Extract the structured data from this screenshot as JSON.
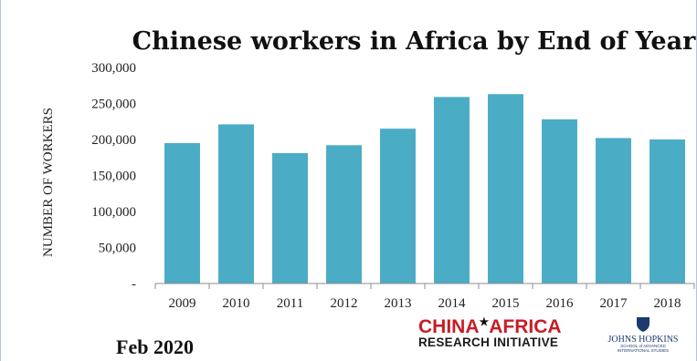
{
  "chart_data": {
    "type": "bar",
    "title": "Chinese workers in Africa by End of Year",
    "xlabel": "",
    "ylabel": "NUMBER OF WORKERS",
    "categories": [
      "2009",
      "2010",
      "2011",
      "2012",
      "2013",
      "2014",
      "2015",
      "2016",
      "2017",
      "2018"
    ],
    "values": [
      195000,
      221000,
      181000,
      192000,
      215000,
      259000,
      263000,
      228000,
      202000,
      200000
    ],
    "ylim": [
      0,
      300000
    ],
    "yticks": [
      0,
      50000,
      100000,
      150000,
      200000,
      250000,
      300000
    ],
    "ytick_labels": [
      "-",
      "50,000",
      "100,000",
      "150,000",
      "200,000",
      "250,000",
      "300,000"
    ],
    "grid": false,
    "legend": "none",
    "bar_color": "#4bacc6"
  },
  "footer": {
    "date": "Feb 2020",
    "logo_line1_a": "CHINA",
    "logo_line1_b": "AFRICA",
    "logo_star": "★",
    "logo_line2": "RESEARCH INITIATIVE",
    "jh_line1": "JOHNS HOPKINS",
    "jh_line2": "SCHOOL of ADVANCED",
    "jh_line3": "INTERNATIONAL STUDIES"
  },
  "colors": {
    "logo_red": "#c81d25",
    "jh_blue": "#1d3a6e"
  }
}
